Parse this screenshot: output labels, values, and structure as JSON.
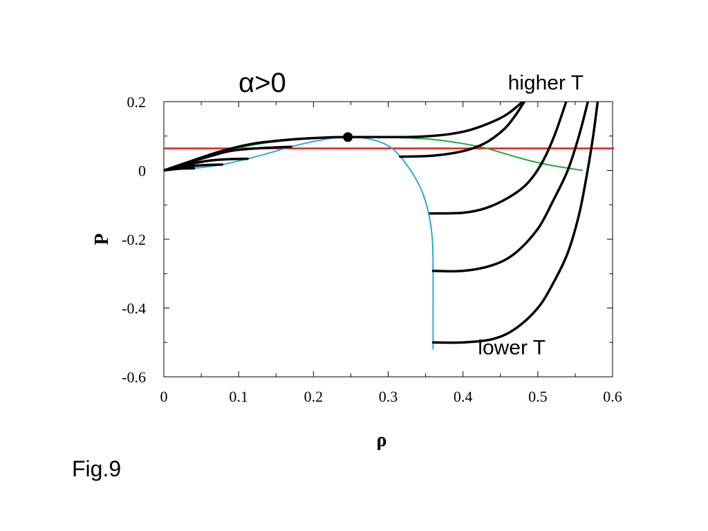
{
  "caption": "Fig.9",
  "chart_data": {
    "type": "line",
    "title": "α>0",
    "xlabel": "ρ",
    "ylabel": "P",
    "xlim": [
      0,
      0.6
    ],
    "ylim": [
      -0.6,
      0.2
    ],
    "x_ticks": [
      "0",
      "0.1",
      "0.2",
      "0.3",
      "0.4",
      "0.5",
      "0.6"
    ],
    "y_ticks": [
      "0.2",
      "0",
      "-0.2",
      "-0.4",
      "-0.6"
    ],
    "x_tick_values": [
      0,
      0.1,
      0.2,
      0.3,
      0.4,
      0.5,
      0.6
    ],
    "y_tick_values": [
      0.2,
      0,
      -0.2,
      -0.4,
      -0.6
    ],
    "annotations": [
      {
        "text": "higher T",
        "x": 0.46,
        "y": 0.235
      },
      {
        "text": "lower T",
        "x": 0.42,
        "y": -0.535
      }
    ],
    "colors": {
      "isotherm": "#000000",
      "spinodal": "#29a8e0",
      "binodal": "#22a33a",
      "reference_line": "#e8201a"
    },
    "critical_point": {
      "x": 0.246,
      "y": 0.097
    },
    "reference_line": {
      "y": 0.064
    },
    "series": [
      {
        "kind": "isotherm",
        "left": [
          [
            0,
            0
          ],
          [
            0.04,
            0.03
          ],
          [
            0.08,
            0.058
          ],
          [
            0.12,
            0.078
          ],
          [
            0.17,
            0.09
          ],
          [
            0.22,
            0.096
          ],
          [
            0.25,
            0.097
          ],
          [
            0.29,
            0.097
          ],
          [
            0.34,
            0.098
          ],
          [
            0.38,
            0.105
          ],
          [
            0.41,
            0.118
          ],
          [
            0.44,
            0.142
          ],
          [
            0.46,
            0.165
          ],
          [
            0.48,
            0.2
          ]
        ],
        "right": []
      },
      {
        "kind": "isotherm",
        "left": [
          [
            0,
            0
          ],
          [
            0.06,
            0.04
          ],
          [
            0.1,
            0.06
          ],
          [
            0.17,
            0.069
          ]
        ],
        "right": [
          [
            0.316,
            0.04
          ],
          [
            0.36,
            0.043
          ],
          [
            0.4,
            0.056
          ],
          [
            0.43,
            0.08
          ],
          [
            0.455,
            0.12
          ],
          [
            0.47,
            0.16
          ],
          [
            0.482,
            0.2
          ]
        ]
      },
      {
        "kind": "isotherm",
        "left": [
          [
            0,
            0
          ],
          [
            0.05,
            0.025
          ],
          [
            0.08,
            0.032
          ],
          [
            0.112,
            0.034
          ]
        ],
        "right": [
          [
            0.356,
            -0.125
          ],
          [
            0.4,
            -0.123
          ],
          [
            0.43,
            -0.11
          ],
          [
            0.46,
            -0.08
          ],
          [
            0.485,
            -0.04
          ],
          [
            0.505,
            0.02
          ],
          [
            0.522,
            0.1
          ],
          [
            0.538,
            0.2
          ]
        ]
      },
      {
        "kind": "isotherm",
        "left": [
          [
            0,
            0
          ],
          [
            0.04,
            0.013
          ],
          [
            0.06,
            0.016
          ],
          [
            0.078,
            0.017
          ]
        ],
        "right": [
          [
            0.36,
            -0.292
          ],
          [
            0.4,
            -0.292
          ],
          [
            0.44,
            -0.275
          ],
          [
            0.47,
            -0.24
          ],
          [
            0.5,
            -0.17
          ],
          [
            0.52,
            -0.09
          ],
          [
            0.54,
            0.0
          ],
          [
            0.555,
            0.1
          ],
          [
            0.567,
            0.2
          ]
        ]
      },
      {
        "kind": "isotherm",
        "left": [
          [
            0,
            0
          ],
          [
            0.02,
            0.005
          ],
          [
            0.04,
            0.006
          ]
        ],
        "right": [
          [
            0.36,
            -0.5
          ],
          [
            0.4,
            -0.5
          ],
          [
            0.44,
            -0.49
          ],
          [
            0.47,
            -0.46
          ],
          [
            0.5,
            -0.4
          ],
          [
            0.52,
            -0.33
          ],
          [
            0.54,
            -0.24
          ],
          [
            0.555,
            -0.13
          ],
          [
            0.565,
            -0.02
          ],
          [
            0.574,
            0.1
          ],
          [
            0.58,
            0.2
          ]
        ]
      },
      {
        "kind": "spinodal",
        "points": [
          [
            0,
            0
          ],
          [
            0.02,
            0.003
          ],
          [
            0.04,
            0.006
          ],
          [
            0.078,
            0.017
          ],
          [
            0.112,
            0.034
          ],
          [
            0.14,
            0.05
          ],
          [
            0.17,
            0.069
          ],
          [
            0.2,
            0.084
          ],
          [
            0.225,
            0.094
          ],
          [
            0.246,
            0.097
          ],
          [
            0.265,
            0.095
          ],
          [
            0.29,
            0.082
          ],
          [
            0.31,
            0.055
          ],
          [
            0.33,
            0.0
          ],
          [
            0.345,
            -0.06
          ],
          [
            0.354,
            -0.125
          ],
          [
            0.359,
            -0.2
          ],
          [
            0.36,
            -0.292
          ],
          [
            0.36,
            -0.4
          ],
          [
            0.36,
            -0.5
          ],
          [
            0.36,
            -0.52
          ]
        ]
      },
      {
        "kind": "binodal",
        "points": [
          [
            0,
            0
          ],
          [
            0.04,
            0.028
          ],
          [
            0.08,
            0.055
          ],
          [
            0.13,
            0.078
          ],
          [
            0.18,
            0.09
          ],
          [
            0.22,
            0.095
          ],
          [
            0.246,
            0.097
          ],
          [
            0.28,
            0.097
          ],
          [
            0.32,
            0.095
          ],
          [
            0.36,
            0.09
          ],
          [
            0.4,
            0.078
          ],
          [
            0.43,
            0.065
          ],
          [
            0.46,
            0.046
          ],
          [
            0.49,
            0.028
          ],
          [
            0.52,
            0.014
          ],
          [
            0.56,
            0.0
          ]
        ]
      }
    ]
  }
}
